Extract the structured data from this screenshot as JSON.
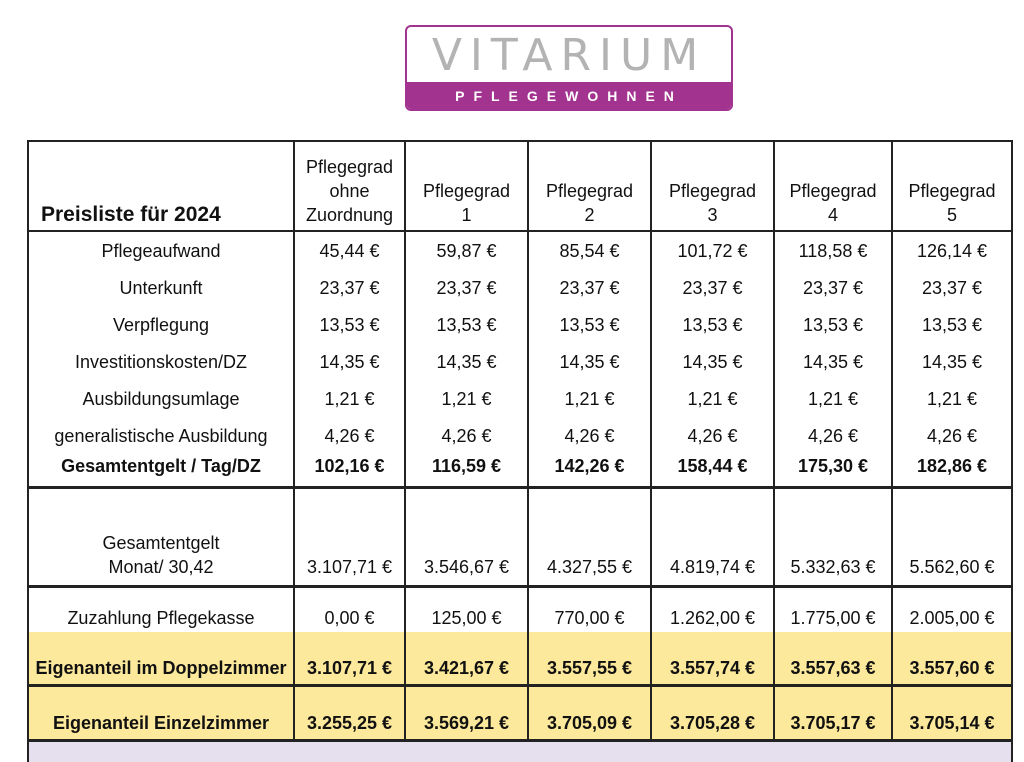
{
  "logo": {
    "brand": "VITARIUM",
    "subtitle": "PFLEGEWOHNEN",
    "brand_color": "#a2338f",
    "text_color": "#b3b3b3"
  },
  "table": {
    "title": "Preisliste für 2024",
    "columns": [
      {
        "line1": "Pflegegrad",
        "line2": "ohne",
        "line3": "Zuordnung"
      },
      {
        "line1": "Pflegegrad",
        "line2": "1"
      },
      {
        "line1": "Pflegegrad",
        "line2": "2"
      },
      {
        "line1": "Pflegegrad",
        "line2": "3"
      },
      {
        "line1": "Pflegegrad",
        "line2": "4"
      },
      {
        "line1": "Pflegegrad",
        "line2": "5"
      }
    ],
    "rows": [
      {
        "label": "Pflegeaufwand",
        "values": [
          "45,44 €",
          "59,87 €",
          "85,54 €",
          "101,72 €",
          "118,58 €",
          "126,14 €"
        ]
      },
      {
        "label": "Unterkunft",
        "values": [
          "23,37 €",
          "23,37 €",
          "23,37 €",
          "23,37 €",
          "23,37 €",
          "23,37 €"
        ]
      },
      {
        "label": "Verpflegung",
        "values": [
          "13,53 €",
          "13,53 €",
          "13,53 €",
          "13,53 €",
          "13,53 €",
          "13,53 €"
        ]
      },
      {
        "label": "Investitionskosten/DZ",
        "values": [
          "14,35 €",
          "14,35 €",
          "14,35 €",
          "14,35 €",
          "14,35 €",
          "14,35 €"
        ]
      },
      {
        "label": "Ausbildungsumlage",
        "values": [
          "1,21 €",
          "1,21 €",
          "1,21 €",
          "1,21 €",
          "1,21 €",
          "1,21 €"
        ]
      },
      {
        "label": "generalistische Ausbildung",
        "values": [
          "4,26 €",
          "4,26 €",
          "4,26 €",
          "4,26 €",
          "4,26 €",
          "4,26 €"
        ]
      }
    ],
    "total_day": {
      "label": "Gesamtentgelt / Tag/DZ",
      "values": [
        "102,16 €",
        "116,59 €",
        "142,26 €",
        "158,44 €",
        "175,30 €",
        "182,86 €"
      ]
    },
    "total_month": {
      "label_line1": "Gesamtentgelt",
      "label_line2": "Monat/ 30,42",
      "values": [
        "3.107,71 €",
        "3.546,67 €",
        "4.327,55 €",
        "4.819,74 €",
        "5.332,63 €",
        "5.562,60 €"
      ]
    },
    "care_fund": {
      "label": "Zuzahlung Pflegekasse",
      "values": [
        "0,00 €",
        "125,00 €",
        "770,00 €",
        "1.262,00 €",
        "1.775,00 €",
        "2.005,00 €"
      ]
    },
    "double_room": {
      "label": "Eigenanteil im Doppelzimmer",
      "values": [
        "3.107,71 €",
        "3.421,67 €",
        "3.557,55 €",
        "3.557,74 €",
        "3.557,63 €",
        "3.557,60 €"
      ]
    },
    "single_room": {
      "label": "Eigenanteil Einzelzimmer",
      "values": [
        "3.255,25 €",
        "3.569,21 €",
        "3.705,09 €",
        "3.705,28 €",
        "3.705,17 €",
        "3.705,14 €"
      ]
    },
    "highlight_color": "#fde99b"
  }
}
